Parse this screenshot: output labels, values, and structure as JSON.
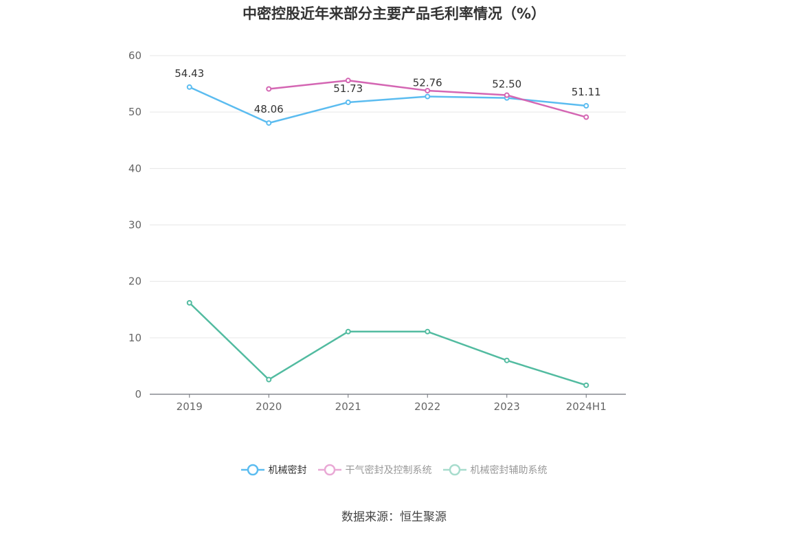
{
  "title": "中密控股近年来部分主要产品毛利率情况（%）",
  "source": "数据来源：恒生聚源",
  "chart_data": {
    "type": "line",
    "title": "中密控股近年来部分主要产品毛利率情况（%）",
    "categories": [
      "2019",
      "2020",
      "2021",
      "2022",
      "2023",
      "2024H1"
    ],
    "ylim": [
      0,
      60
    ],
    "yticks": [
      0,
      10,
      20,
      30,
      40,
      50,
      60
    ],
    "grid": true,
    "legend_position": "bottom",
    "series": [
      {
        "name": "机械密封",
        "color": "#5bbcf0",
        "values": [
          54.43,
          48.06,
          51.73,
          52.76,
          52.5,
          51.11
        ],
        "labels": [
          "54.43",
          "48.06",
          "51.73",
          "52.76",
          "52.50",
          "51.11"
        ]
      },
      {
        "name": "干气密封及控制系统",
        "color": "#d466b3",
        "values": [
          null,
          54.1,
          55.6,
          53.8,
          53.0,
          49.1
        ]
      },
      {
        "name": "机械密封辅助系统",
        "color": "#52bba0",
        "values": [
          16.2,
          2.6,
          11.1,
          11.1,
          6.0,
          1.6
        ]
      }
    ]
  }
}
